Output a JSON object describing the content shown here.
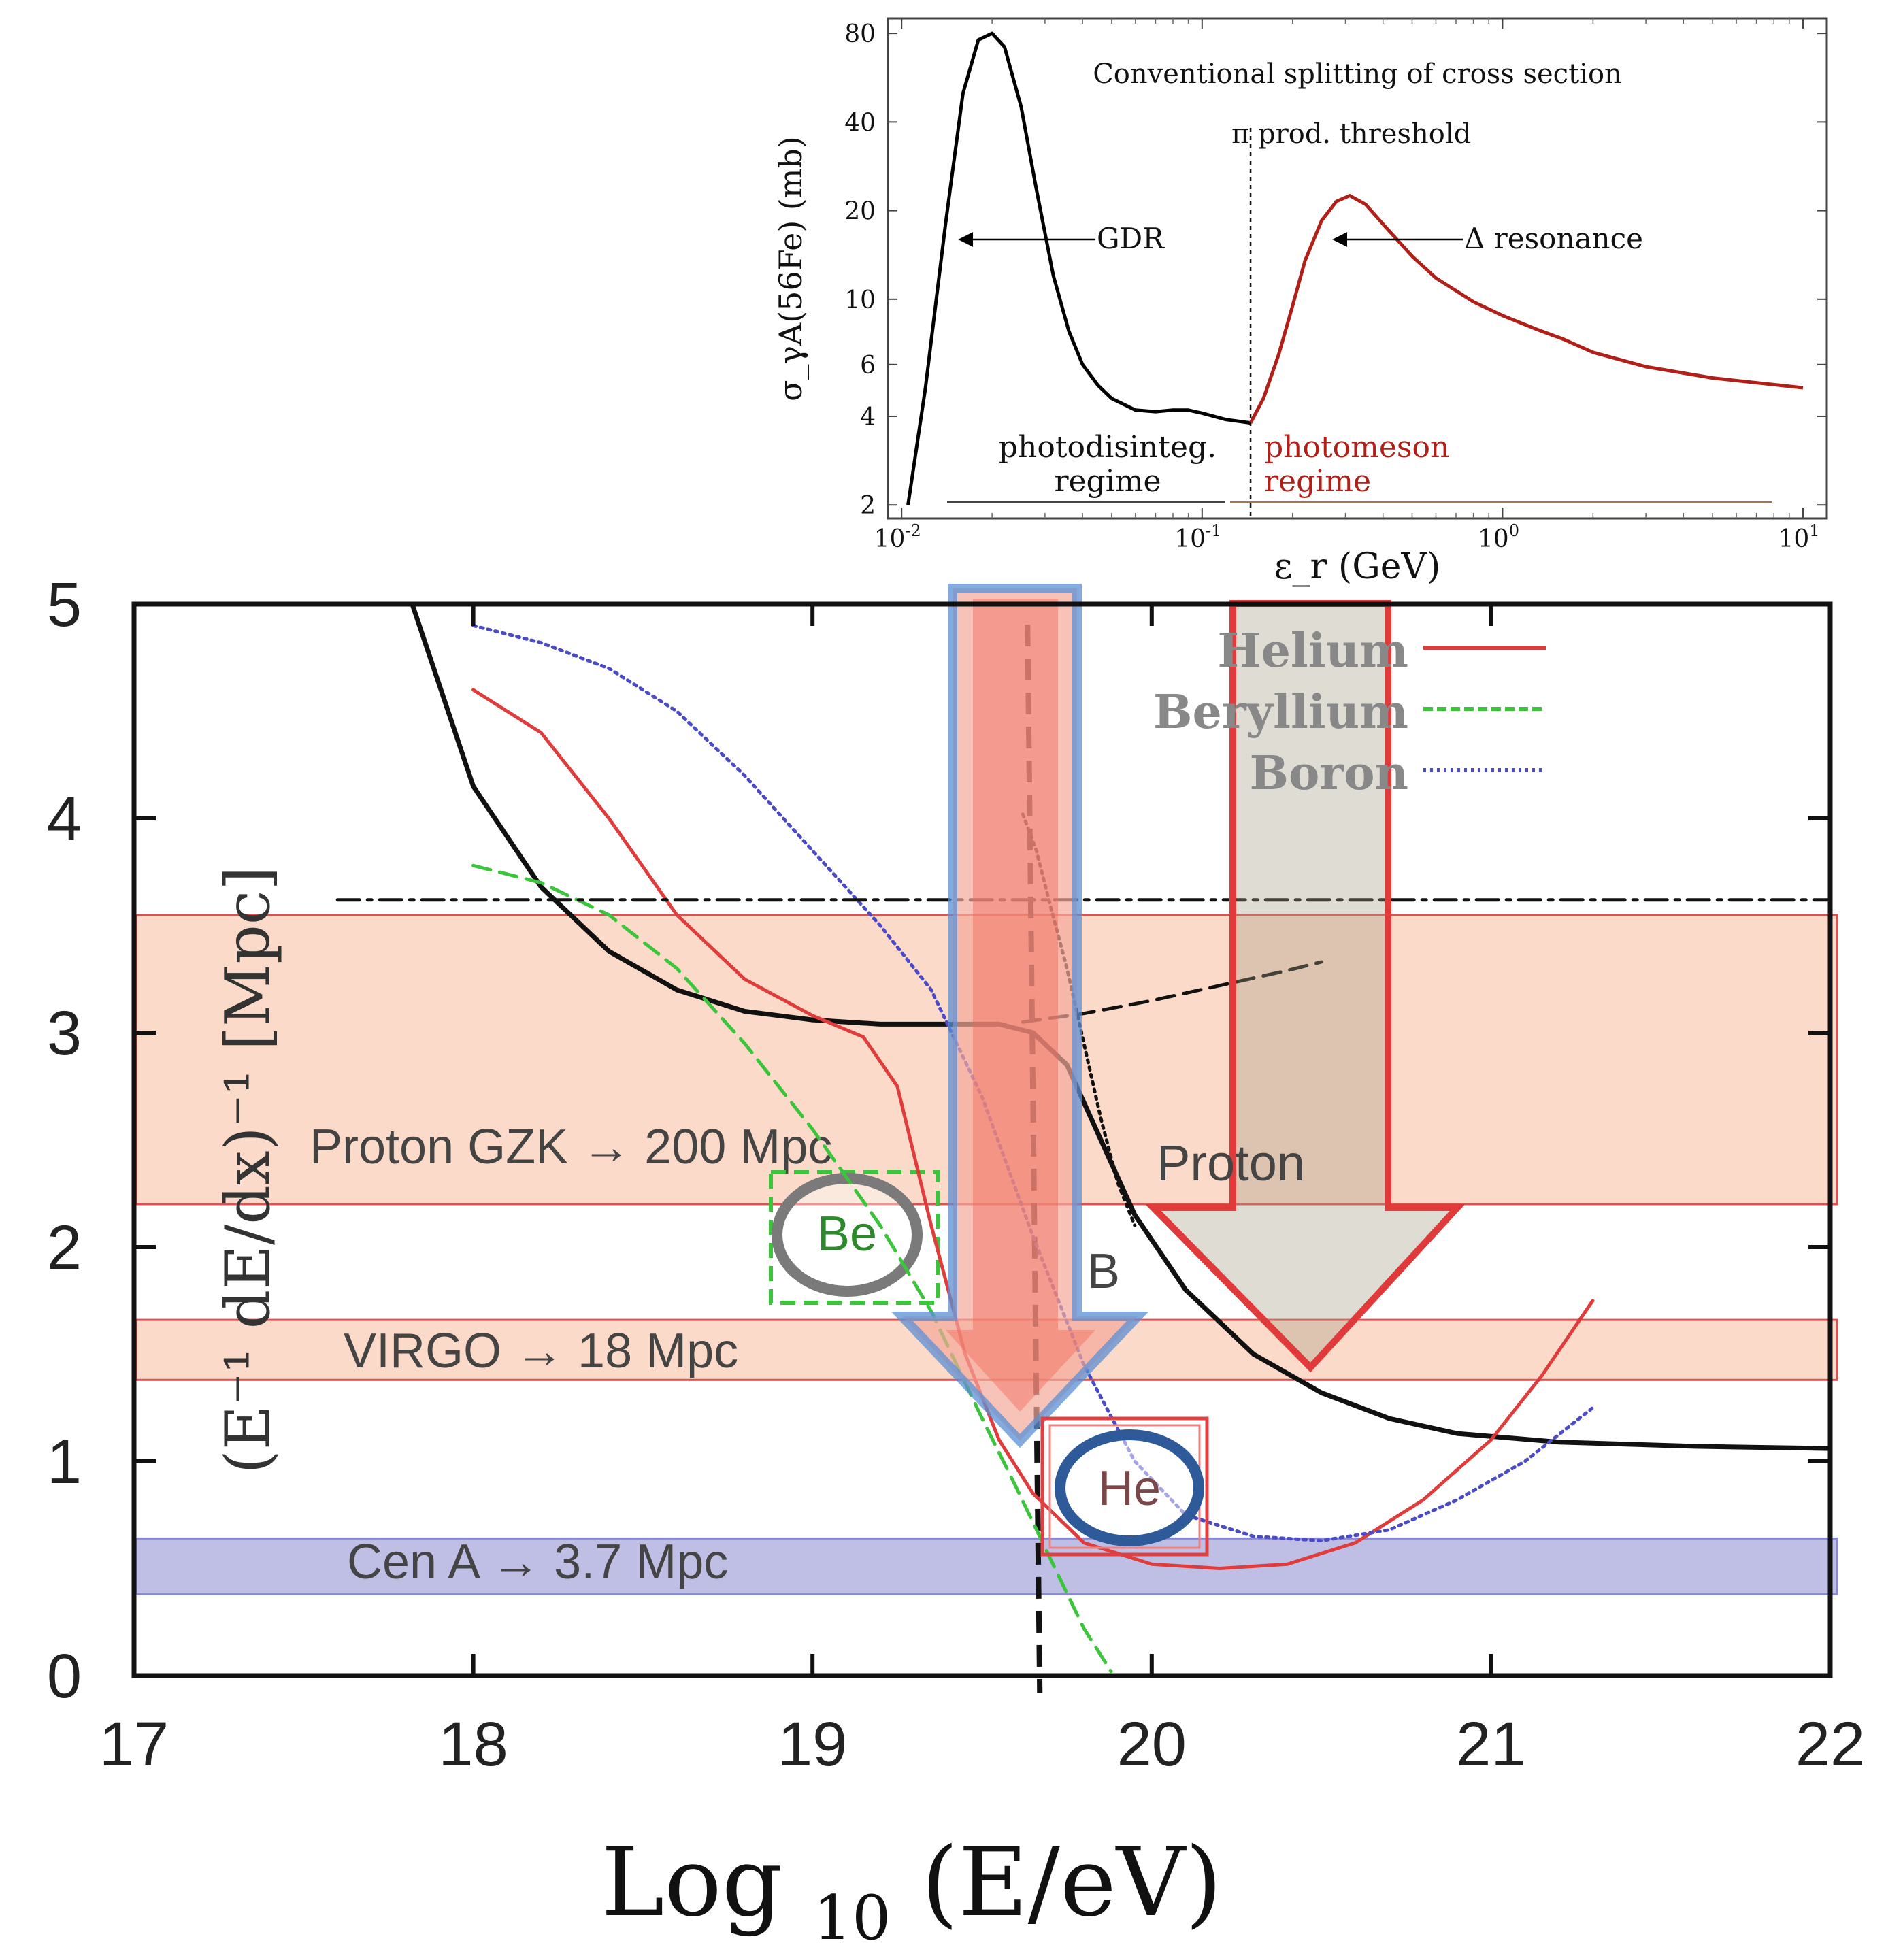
{
  "chart_data": [
    {
      "type": "line",
      "title": "Conventional splitting of cross section",
      "xlabel": "ε_r (GeV)",
      "ylabel": "σ_γA(56Fe) (mb)",
      "xscale": "log",
      "yscale": "log",
      "xlim": [
        0.009,
        12
      ],
      "ylim": [
        1.8,
        90
      ],
      "x_ticks": [
        {
          "v": 0.01,
          "base": "10",
          "exp": "-2"
        },
        {
          "v": 0.1,
          "base": "10",
          "exp": "-1"
        },
        {
          "v": 1,
          "base": "10",
          "exp": "0"
        },
        {
          "v": 10,
          "base": "10",
          "exp": "1"
        }
      ],
      "y_ticks": [
        2,
        4,
        6,
        10,
        20,
        40,
        80
      ],
      "threshold_x": 0.145,
      "threshold_label": "π prod. threshold",
      "series": [
        {
          "name": "photodisintegration",
          "color": "#000000",
          "x": [
            0.0105,
            0.012,
            0.014,
            0.016,
            0.018,
            0.02,
            0.022,
            0.025,
            0.028,
            0.032,
            0.036,
            0.04,
            0.045,
            0.05,
            0.06,
            0.07,
            0.08,
            0.09,
            0.1,
            0.12,
            0.145
          ],
          "y": [
            2,
            5,
            18,
            50,
            76,
            80,
            72,
            45,
            24,
            12,
            7.8,
            6,
            5.1,
            4.6,
            4.2,
            4.15,
            4.2,
            4.2,
            4.1,
            3.9,
            3.8
          ]
        },
        {
          "name": "photomeson",
          "color": "#b02018",
          "x": [
            0.145,
            0.16,
            0.18,
            0.2,
            0.22,
            0.25,
            0.28,
            0.31,
            0.35,
            0.4,
            0.5,
            0.6,
            0.8,
            1.0,
            1.3,
            1.6,
            2,
            3,
            5,
            10
          ],
          "y": [
            3.8,
            4.6,
            6.5,
            9.5,
            13.5,
            18.5,
            21.5,
            22.5,
            21,
            18,
            14,
            11.8,
            9.8,
            8.8,
            7.9,
            7.3,
            6.6,
            5.9,
            5.4,
            5.0
          ]
        }
      ],
      "annotations": [
        {
          "text": "GDR",
          "role": "peak-label"
        },
        {
          "text": "Δ resonance",
          "role": "peak-label"
        },
        {
          "text_lines": [
            "photodisinteg.",
            "regime"
          ],
          "color": "#000000"
        },
        {
          "text_lines": [
            "photomeson",
            "regime"
          ],
          "color": "#b02018"
        }
      ]
    },
    {
      "type": "line",
      "xlabel": "Log 10 (E/eV)",
      "ylabel": "(E⁻¹ dE/dx)⁻¹ [Mpc]",
      "xlim": [
        17,
        22
      ],
      "ylim": [
        0,
        5
      ],
      "x_ticks": [
        17,
        18,
        19,
        20,
        21,
        22
      ],
      "y_ticks": [
        0,
        1,
        2,
        3,
        4,
        5
      ],
      "legend": {
        "position": "top-right",
        "entries": [
          {
            "name": "Helium",
            "color": "#e03c3c",
            "dash": "solid"
          },
          {
            "name": "Beryllium",
            "color": "#3cc43c",
            "dash": "dashed"
          },
          {
            "name": "Boron",
            "color": "#4b4bc8",
            "dash": "dotted"
          }
        ]
      },
      "series": [
        {
          "name": "Proton",
          "color": "#111111",
          "dash": "solid",
          "x": [
            17.82,
            18.0,
            18.2,
            18.4,
            18.6,
            18.8,
            19.0,
            19.2,
            19.4,
            19.55,
            19.65,
            19.75,
            19.85,
            19.95,
            20.1,
            20.3,
            20.5,
            20.7,
            20.9,
            21.2,
            21.6,
            22.0
          ],
          "y": [
            5.0,
            4.15,
            3.68,
            3.38,
            3.2,
            3.1,
            3.06,
            3.04,
            3.04,
            3.04,
            3.0,
            2.85,
            2.5,
            2.15,
            1.8,
            1.5,
            1.32,
            1.2,
            1.13,
            1.09,
            1.07,
            1.06
          ]
        },
        {
          "name": "Helium",
          "color": "#e03c3c",
          "dash": "solid",
          "x": [
            18.0,
            18.2,
            18.4,
            18.6,
            18.8,
            19.0,
            19.15,
            19.25,
            19.35,
            19.45,
            19.55,
            19.65,
            19.8,
            20.0,
            20.2,
            20.4,
            20.6,
            20.8,
            21.0,
            21.15,
            21.3
          ],
          "y": [
            4.6,
            4.4,
            4.0,
            3.55,
            3.25,
            3.08,
            2.98,
            2.75,
            2.1,
            1.5,
            1.1,
            0.85,
            0.62,
            0.52,
            0.5,
            0.52,
            0.62,
            0.82,
            1.1,
            1.4,
            1.75
          ]
        },
        {
          "name": "Beryllium",
          "color": "#3cc43c",
          "dash": "dashed",
          "x": [
            18.0,
            18.2,
            18.4,
            18.6,
            18.8,
            19.0,
            19.2,
            19.35,
            19.5,
            19.6,
            19.7,
            19.8,
            19.88
          ],
          "y": [
            3.78,
            3.7,
            3.55,
            3.3,
            2.95,
            2.55,
            2.1,
            1.7,
            1.2,
            0.88,
            0.55,
            0.22,
            0.02
          ]
        },
        {
          "name": "Boron",
          "color": "#4b4bc8",
          "dash": "dotted",
          "x": [
            18.0,
            18.2,
            18.4,
            18.6,
            18.8,
            19.0,
            19.2,
            19.35,
            19.5,
            19.65,
            19.8,
            19.95,
            20.1,
            20.3,
            20.5,
            20.7,
            20.9,
            21.1,
            21.3
          ],
          "y": [
            4.9,
            4.82,
            4.7,
            4.5,
            4.2,
            3.85,
            3.5,
            3.2,
            2.7,
            2.05,
            1.45,
            1.0,
            0.75,
            0.65,
            0.63,
            0.68,
            0.82,
            1.0,
            1.25
          ]
        },
        {
          "name": "B (dotted black)",
          "color": "#111111",
          "dash": "dotted",
          "x": [
            19.62,
            19.66,
            19.7,
            19.75,
            19.8,
            19.85,
            19.9,
            19.95
          ],
          "y": [
            4.02,
            3.85,
            3.6,
            3.3,
            2.95,
            2.6,
            2.3,
            2.1
          ]
        },
        {
          "name": "Proton dashed",
          "color": "#111111",
          "dash": "dashed",
          "x": [
            19.62,
            19.8,
            20.0,
            20.2,
            20.4,
            20.5
          ],
          "y": [
            3.05,
            3.09,
            3.15,
            3.22,
            3.29,
            3.33
          ]
        },
        {
          "name": "Proton dash-dot",
          "color": "#111111",
          "dash": "dashdot",
          "x": [
            17.6,
            22.0
          ],
          "y": [
            3.62,
            3.62
          ]
        }
      ],
      "threshold_x": 19.67,
      "bands": [
        {
          "label": "Proton GZK → 200 Mpc",
          "y0": 2.2,
          "y1": 3.55,
          "color": "#fad3bf"
        },
        {
          "label": "VIRGO → 18 Mpc",
          "y0": 1.38,
          "y1": 1.66,
          "color": "#fad3bf"
        },
        {
          "label": "Cen A → 3.7 Mpc",
          "y0": 0.38,
          "y1": 0.64,
          "color": "#b4b4e1"
        }
      ],
      "annotations": [
        {
          "text": "Proton"
        },
        {
          "text": "B"
        },
        {
          "text": "Be"
        },
        {
          "text": "He"
        }
      ]
    }
  ]
}
